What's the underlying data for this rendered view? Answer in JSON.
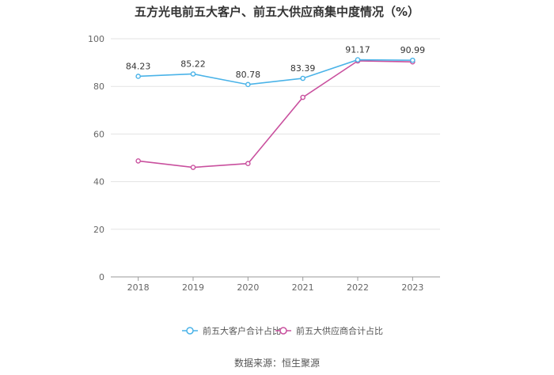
{
  "title": "五方光电前五大客户、前五大供应商集中度情况（%）",
  "source": "数据来源：恒生聚源",
  "chart_data": {
    "type": "line",
    "title": "五方光电前五大客户、前五大供应商集中度情况（%）",
    "categories": [
      "2018",
      "2019",
      "2020",
      "2021",
      "2022",
      "2023"
    ],
    "ylim": [
      0,
      100
    ],
    "yticks": [
      0,
      20,
      40,
      60,
      80,
      100
    ],
    "grid": true,
    "legend_position": "bottom",
    "series": [
      {
        "name": "前五大客户合计占比",
        "color": "#4ab3e8",
        "values": [
          84.23,
          85.22,
          80.78,
          83.39,
          91.17,
          90.99
        ],
        "labels": [
          "84.23",
          "85.22",
          "80.78",
          "83.39",
          "91.17",
          "90.99"
        ]
      },
      {
        "name": "前五大供应商合计占比",
        "color": "#c9509e",
        "values": [
          48.7,
          46.0,
          47.6,
          75.4,
          90.7,
          90.3
        ],
        "labels": [
          "",
          "",
          "",
          "",
          "",
          ""
        ]
      }
    ]
  }
}
